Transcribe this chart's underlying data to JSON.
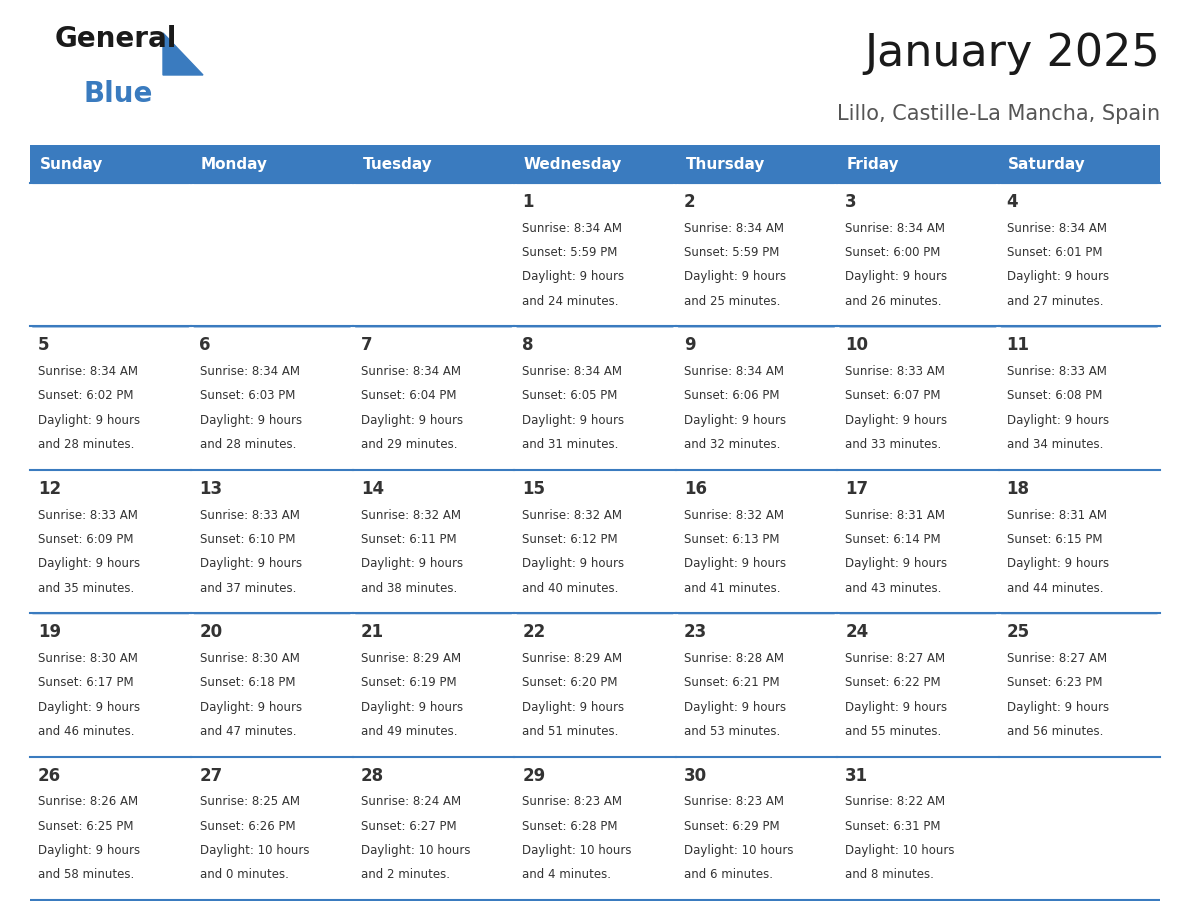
{
  "title": "January 2025",
  "subtitle": "Lillo, Castille-La Mancha, Spain",
  "days_of_week": [
    "Sunday",
    "Monday",
    "Tuesday",
    "Wednesday",
    "Thursday",
    "Friday",
    "Saturday"
  ],
  "header_bg": "#3a7bbf",
  "header_text": "#ffffff",
  "row_bg_odd": "#f0f4f8",
  "row_bg_even": "#ffffff",
  "cell_text_color": "#333333",
  "day_num_color": "#333333",
  "border_color": "#3a7bbf",
  "calendar": [
    [
      {
        "day": "",
        "sunrise": "",
        "sunset": "",
        "daylight": ""
      },
      {
        "day": "",
        "sunrise": "",
        "sunset": "",
        "daylight": ""
      },
      {
        "day": "",
        "sunrise": "",
        "sunset": "",
        "daylight": ""
      },
      {
        "day": "1",
        "sunrise": "8:34 AM",
        "sunset": "5:59 PM",
        "daylight": "9 hours\nand 24 minutes."
      },
      {
        "day": "2",
        "sunrise": "8:34 AM",
        "sunset": "5:59 PM",
        "daylight": "9 hours\nand 25 minutes."
      },
      {
        "day": "3",
        "sunrise": "8:34 AM",
        "sunset": "6:00 PM",
        "daylight": "9 hours\nand 26 minutes."
      },
      {
        "day": "4",
        "sunrise": "8:34 AM",
        "sunset": "6:01 PM",
        "daylight": "9 hours\nand 27 minutes."
      }
    ],
    [
      {
        "day": "5",
        "sunrise": "8:34 AM",
        "sunset": "6:02 PM",
        "daylight": "9 hours\nand 28 minutes."
      },
      {
        "day": "6",
        "sunrise": "8:34 AM",
        "sunset": "6:03 PM",
        "daylight": "9 hours\nand 28 minutes."
      },
      {
        "day": "7",
        "sunrise": "8:34 AM",
        "sunset": "6:04 PM",
        "daylight": "9 hours\nand 29 minutes."
      },
      {
        "day": "8",
        "sunrise": "8:34 AM",
        "sunset": "6:05 PM",
        "daylight": "9 hours\nand 31 minutes."
      },
      {
        "day": "9",
        "sunrise": "8:34 AM",
        "sunset": "6:06 PM",
        "daylight": "9 hours\nand 32 minutes."
      },
      {
        "day": "10",
        "sunrise": "8:33 AM",
        "sunset": "6:07 PM",
        "daylight": "9 hours\nand 33 minutes."
      },
      {
        "day": "11",
        "sunrise": "8:33 AM",
        "sunset": "6:08 PM",
        "daylight": "9 hours\nand 34 minutes."
      }
    ],
    [
      {
        "day": "12",
        "sunrise": "8:33 AM",
        "sunset": "6:09 PM",
        "daylight": "9 hours\nand 35 minutes."
      },
      {
        "day": "13",
        "sunrise": "8:33 AM",
        "sunset": "6:10 PM",
        "daylight": "9 hours\nand 37 minutes."
      },
      {
        "day": "14",
        "sunrise": "8:32 AM",
        "sunset": "6:11 PM",
        "daylight": "9 hours\nand 38 minutes."
      },
      {
        "day": "15",
        "sunrise": "8:32 AM",
        "sunset": "6:12 PM",
        "daylight": "9 hours\nand 40 minutes."
      },
      {
        "day": "16",
        "sunrise": "8:32 AM",
        "sunset": "6:13 PM",
        "daylight": "9 hours\nand 41 minutes."
      },
      {
        "day": "17",
        "sunrise": "8:31 AM",
        "sunset": "6:14 PM",
        "daylight": "9 hours\nand 43 minutes."
      },
      {
        "day": "18",
        "sunrise": "8:31 AM",
        "sunset": "6:15 PM",
        "daylight": "9 hours\nand 44 minutes."
      }
    ],
    [
      {
        "day": "19",
        "sunrise": "8:30 AM",
        "sunset": "6:17 PM",
        "daylight": "9 hours\nand 46 minutes."
      },
      {
        "day": "20",
        "sunrise": "8:30 AM",
        "sunset": "6:18 PM",
        "daylight": "9 hours\nand 47 minutes."
      },
      {
        "day": "21",
        "sunrise": "8:29 AM",
        "sunset": "6:19 PM",
        "daylight": "9 hours\nand 49 minutes."
      },
      {
        "day": "22",
        "sunrise": "8:29 AM",
        "sunset": "6:20 PM",
        "daylight": "9 hours\nand 51 minutes."
      },
      {
        "day": "23",
        "sunrise": "8:28 AM",
        "sunset": "6:21 PM",
        "daylight": "9 hours\nand 53 minutes."
      },
      {
        "day": "24",
        "sunrise": "8:27 AM",
        "sunset": "6:22 PM",
        "daylight": "9 hours\nand 55 minutes."
      },
      {
        "day": "25",
        "sunrise": "8:27 AM",
        "sunset": "6:23 PM",
        "daylight": "9 hours\nand 56 minutes."
      }
    ],
    [
      {
        "day": "26",
        "sunrise": "8:26 AM",
        "sunset": "6:25 PM",
        "daylight": "9 hours\nand 58 minutes."
      },
      {
        "day": "27",
        "sunrise": "8:25 AM",
        "sunset": "6:26 PM",
        "daylight": "10 hours\nand 0 minutes."
      },
      {
        "day": "28",
        "sunrise": "8:24 AM",
        "sunset": "6:27 PM",
        "daylight": "10 hours\nand 2 minutes."
      },
      {
        "day": "29",
        "sunrise": "8:23 AM",
        "sunset": "6:28 PM",
        "daylight": "10 hours\nand 4 minutes."
      },
      {
        "day": "30",
        "sunrise": "8:23 AM",
        "sunset": "6:29 PM",
        "daylight": "10 hours\nand 6 minutes."
      },
      {
        "day": "31",
        "sunrise": "8:22 AM",
        "sunset": "6:31 PM",
        "daylight": "10 hours\nand 8 minutes."
      },
      {
        "day": "",
        "sunrise": "",
        "sunset": "",
        "daylight": ""
      }
    ]
  ],
  "logo_text_general": "General",
  "logo_text_blue": "Blue",
  "logo_color_general": "#1a1a1a",
  "logo_color_blue": "#3a7bbf",
  "logo_triangle_color": "#3a7bbf",
  "title_fontsize": 32,
  "subtitle_fontsize": 15,
  "header_fontsize": 11,
  "day_num_fontsize": 12,
  "cell_fontsize": 8.5
}
